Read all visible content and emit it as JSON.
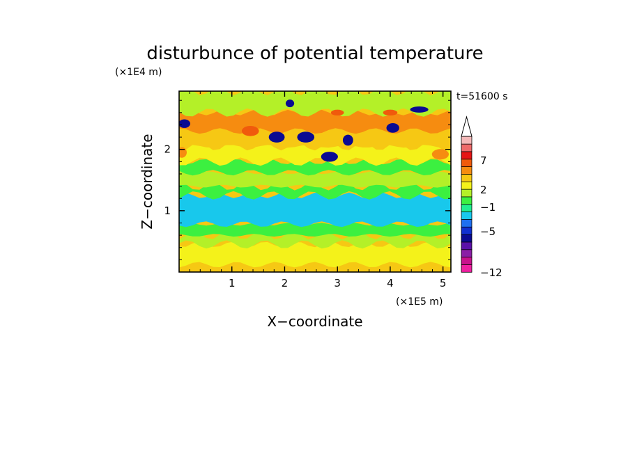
{
  "chart_data": {
    "type": "heatmap",
    "title": "disturbunce of potential temperature",
    "xlabel": "X−coordinate",
    "ylabel": "Z−coordinate",
    "x_unit": "(×1E5 m)",
    "y_unit": "(×1E4 m)",
    "time_label": "t=51600 s",
    "xlim": [
      0,
      5.15
    ],
    "ylim": [
      0,
      2.95
    ],
    "x_ticks": [
      1,
      2,
      3,
      4,
      5
    ],
    "y_ticks": [
      1,
      2
    ],
    "colorbar": {
      "labels": [
        "7",
        "2",
        "−1",
        "−5",
        "−12"
      ],
      "levels": [
        -12,
        -10,
        -8,
        -6,
        -5,
        -4,
        -3,
        -2,
        -1,
        0,
        1,
        2,
        3,
        4,
        5,
        7,
        9,
        11
      ],
      "colors": [
        "#ee20a0",
        "#c8128c",
        "#8a1fa6",
        "#5a10a8",
        "#0a0a92",
        "#1030d0",
        "#1e70f0",
        "#18c8ec",
        "#20ee90",
        "#3cf040",
        "#b4f028",
        "#f4f21a",
        "#f6c814",
        "#f68c10",
        "#f05a0c",
        "#e61414",
        "#ee6a6a",
        "#f4b8b8"
      ],
      "extend": "max"
    },
    "bands": [
      {
        "z": [
          0.02,
          0.12
        ],
        "value": 1.5,
        "color": "#f6c814"
      },
      {
        "z": [
          0.12,
          0.45
        ],
        "value": 0.5,
        "color": "#f4f21a"
      },
      {
        "z": [
          0.45,
          0.6
        ],
        "value": 0.0,
        "color": "#b4f028"
      },
      {
        "z": [
          0.6,
          0.78
        ],
        "value": -0.2,
        "color": "#3cf040"
      },
      {
        "z": [
          0.78,
          1.25
        ],
        "value": -1.0,
        "color": "#18c8ec"
      },
      {
        "z": [
          1.25,
          1.4
        ],
        "value": -0.5,
        "color": "#3cf040"
      },
      {
        "z": [
          1.4,
          1.62
        ],
        "value": 0.0,
        "color": "#b4f028"
      },
      {
        "z": [
          1.62,
          1.8
        ],
        "value": -0.5,
        "color": "#3cf040"
      },
      {
        "z": [
          1.8,
          2.05
        ],
        "value": 0.5,
        "color": "#f4f21a"
      },
      {
        "z": [
          2.05,
          2.3
        ],
        "value": 2.0,
        "color": "#f6c814"
      },
      {
        "z": [
          2.3,
          2.6
        ],
        "value": 2.5,
        "color": "#f68c10"
      },
      {
        "z": [
          2.6,
          2.95
        ],
        "value": 0.0,
        "color": "#b4f028"
      }
    ],
    "features": [
      {
        "x": 0.1,
        "z": 2.42,
        "value": -5,
        "color": "#0a0a92"
      },
      {
        "x": 0.05,
        "z": 1.95,
        "value": 3,
        "color": "#f68c10"
      },
      {
        "x": 1.85,
        "z": 2.2,
        "value": -5,
        "color": "#0a0a92"
      },
      {
        "x": 2.1,
        "z": 2.75,
        "value": -5,
        "color": "#0a0a92"
      },
      {
        "x": 2.4,
        "z": 2.2,
        "value": -5,
        "color": "#0a0a92"
      },
      {
        "x": 2.85,
        "z": 1.88,
        "value": -5,
        "color": "#0a0a92"
      },
      {
        "x": 3.2,
        "z": 2.15,
        "value": -5,
        "color": "#0a0a92"
      },
      {
        "x": 4.05,
        "z": 2.35,
        "value": -5,
        "color": "#0a0a92"
      },
      {
        "x": 4.55,
        "z": 2.65,
        "value": -5,
        "color": "#0a0a92"
      },
      {
        "x": 3.0,
        "z": 2.6,
        "value": 4,
        "color": "#f05a0c"
      },
      {
        "x": 4.0,
        "z": 2.6,
        "value": 4,
        "color": "#f05a0c"
      },
      {
        "x": 1.35,
        "z": 2.3,
        "value": 4,
        "color": "#f05a0c"
      },
      {
        "x": 4.95,
        "z": 1.92,
        "value": 3,
        "color": "#f68c10"
      }
    ]
  }
}
